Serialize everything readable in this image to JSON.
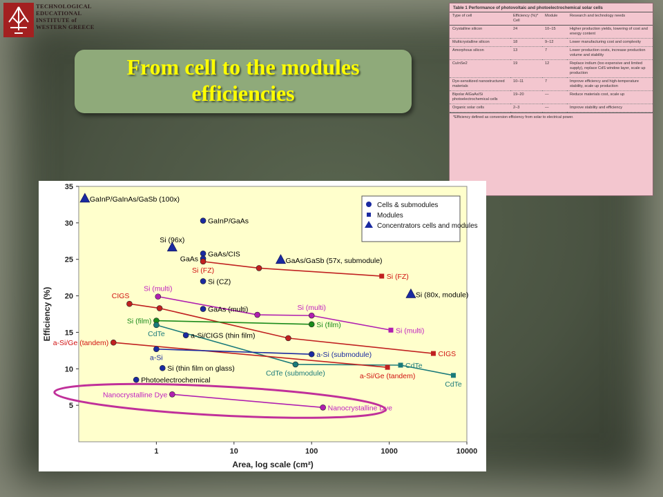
{
  "institution": {
    "lines": [
      "TECHNOLOGICAL",
      "EDUCATIONAL",
      "INSTITUTE of",
      "WESTERN GREECE"
    ]
  },
  "slide": {
    "title_line1": "From cell to the modules",
    "title_line2": "efficiencies"
  },
  "colors": {
    "title_text": "#ffff00",
    "title_box": "#8faa7a",
    "plot_bg": "#ffffcc",
    "table_bg": "#f3c6cf",
    "ellipse": "#c0309a"
  },
  "table": {
    "caption": "Table 1 Performance of photovoltaic and photoelectrochemical solar cells",
    "headers": [
      "Type of cell",
      "Efficiency (%)* Cell",
      "Module",
      "Research and technology needs"
    ],
    "rows": [
      [
        "Crystalline silicon",
        "24",
        "10–15",
        "Higher production yields, lowering of cost and energy content"
      ],
      [
        "Multicrystalline silicon",
        "18",
        "9–12",
        "Lower manufacturing cost and complexity"
      ],
      [
        "Amorphous silicon",
        "13",
        "7",
        "Lower production costs, increase production volume and stability"
      ],
      [
        "CuInSe2",
        "19",
        "12",
        "Replace indium (too expensive and limited supply), replace CdS window layer, scale up production"
      ],
      [
        "Dye-sensitized nanostructured materials",
        "10–11",
        "7",
        "Improve efficiency and high-temperature stability, scale up production"
      ],
      [
        "Bipolar AlGaAs/Si photoelectrochemical cells",
        "19–20",
        "—",
        "Reduce materials cost, scale up"
      ],
      [
        "Organic solar cells",
        "2–3",
        "—",
        "Improve stability and efficiency"
      ]
    ],
    "footnote": "*Efficiency defined as conversion efficiency from solar to electrical power."
  },
  "chart_data": {
    "type": "scatter",
    "xlabel": "Area, log scale (cm²)",
    "ylabel": "Efficiency (%)",
    "xscale": "log",
    "xlim": [
      0.1,
      10000
    ],
    "ylim": [
      0,
      35
    ],
    "x_ticks": [
      "1",
      "10",
      "100",
      "1000",
      "10000"
    ],
    "y_ticks": [
      "5",
      "10",
      "15",
      "20",
      "25",
      "30",
      "35"
    ],
    "grid": false,
    "legend": {
      "placement": "top-right",
      "entries": [
        {
          "label": "Cells & submodules",
          "marker": "circle"
        },
        {
          "label": "Modules",
          "marker": "square"
        },
        {
          "label": "Concentrators cells and modules",
          "marker": "triangle"
        }
      ]
    },
    "points": [
      {
        "label": "GaInP/GaInAs/GaSb (100x)",
        "x": 0.12,
        "y": 33.3,
        "marker": "triangle",
        "color": "#1a2aa0",
        "label_color": "#000000",
        "label_side": "right"
      },
      {
        "label": "Si (96x)",
        "x": 1.6,
        "y": 26.6,
        "marker": "triangle",
        "color": "#1a2aa0",
        "label_color": "#000000",
        "label_side": "above"
      },
      {
        "label": "GaAs/GaSb (57x, submodule)",
        "x": 40,
        "y": 24.9,
        "marker": "triangle",
        "color": "#1a2aa0",
        "label_color": "#000000",
        "label_side": "right"
      },
      {
        "label": "Si (80x, module)",
        "x": 1900,
        "y": 20.2,
        "marker": "triangle",
        "color": "#1a2aa0",
        "label_color": "#000000",
        "label_side": "right"
      },
      {
        "label": "GaInP/GaAs",
        "x": 4,
        "y": 30.3,
        "marker": "circle",
        "color": "#1a2aa0",
        "label_color": "#000000",
        "label_side": "right"
      },
      {
        "label": "GaAs/CIS",
        "x": 4,
        "y": 25.8,
        "marker": "circle",
        "color": "#1a2aa0",
        "label_color": "#000000",
        "label_side": "right"
      },
      {
        "label": "GaAs",
        "x": 4,
        "y": 25.1,
        "marker": "circle",
        "color": "#1a2aa0",
        "label_color": "#000000",
        "label_side": "left"
      },
      {
        "label": "Si (CZ)",
        "x": 4,
        "y": 22.0,
        "marker": "circle",
        "color": "#1a2aa0",
        "label_color": "#000000",
        "label_side": "right"
      },
      {
        "label": "GaAs (multi)",
        "x": 4,
        "y": 18.2,
        "marker": "circle",
        "color": "#1a2aa0",
        "label_color": "#000000",
        "label_side": "right"
      },
      {
        "label": "a-Si/CIGS (thin film)",
        "x": 2.4,
        "y": 14.6,
        "marker": "circle",
        "color": "#1a2aa0",
        "label_color": "#000000",
        "label_side": "right"
      },
      {
        "label": "Si (thin film on glass)",
        "x": 1.2,
        "y": 10.1,
        "marker": "circle",
        "color": "#1a2aa0",
        "label_color": "#000000",
        "label_side": "right"
      },
      {
        "label": "Photoelectrochemical",
        "x": 0.55,
        "y": 8.5,
        "marker": "circle",
        "color": "#1a2aa0",
        "label_color": "#000000",
        "label_side": "right"
      },
      {
        "label": "Si (multi)",
        "x": 1.05,
        "y": 19.9,
        "marker": "circle",
        "color": "#b01fb0",
        "label_color": "#c020c0",
        "label_side": "above"
      },
      {
        "label": "CIGS",
        "x": 0.45,
        "y": 18.9,
        "marker": "circle",
        "color": "#c02020",
        "label_color": "#d01010",
        "label_side": "above-left"
      },
      {
        "label": "Si (FZ)",
        "x": 4,
        "y": 24.7,
        "marker": "circle",
        "color": "#c02020",
        "label_color": "#d01010",
        "label_side": "below"
      },
      {
        "label": "Si (film)",
        "x": 1,
        "y": 16.6,
        "marker": "circle",
        "color": "#1a8a1a",
        "label_color": "#1a8a1a",
        "label_side": "left"
      },
      {
        "label": "CdTe",
        "x": 1,
        "y": 16.0,
        "marker": "circle",
        "color": "#1a7a7a",
        "label_color": "#1a7a7a",
        "label_side": "below"
      },
      {
        "label": "a-Si/Ge (tandem)",
        "x": 0.28,
        "y": 13.6,
        "marker": "circle",
        "color": "#c02020",
        "label_color": "#d01010",
        "label_side": "left"
      },
      {
        "label": "a-Si",
        "x": 1,
        "y": 12.7,
        "marker": "circle",
        "color": "#1a2aa0",
        "label_color": "#1a2aa0",
        "label_side": "below"
      },
      {
        "label": "a-Si (submodule)",
        "x": 100,
        "y": 12.0,
        "marker": "circle",
        "color": "#1a2aa0",
        "label_color": "#1a2aa0",
        "label_side": "right"
      },
      {
        "label": "CdTe (submodule)",
        "x": 62,
        "y": 10.6,
        "marker": "circle",
        "color": "#1a7a7a",
        "label_color": "#1a7a7a",
        "label_side": "below"
      },
      {
        "label": "Nanocrystalline Dye",
        "x": 1.6,
        "y": 6.5,
        "marker": "circle",
        "color": "#b01fb0",
        "label_color": "#c020c0",
        "label_side": "left"
      },
      {
        "label": "Nanocrystalline Dye",
        "x": 140,
        "y": 4.7,
        "marker": "circle",
        "color": "#b01fb0",
        "label_color": "#c020c0",
        "label_side": "right"
      },
      {
        "label": "",
        "x": 21,
        "y": 23.8,
        "marker": "circle",
        "color": "#c02020"
      },
      {
        "label": "",
        "x": 1.1,
        "y": 18.3,
        "marker": "circle",
        "color": "#c02020"
      },
      {
        "label": "",
        "x": 50,
        "y": 14.2,
        "marker": "circle",
        "color": "#c02020"
      },
      {
        "label": "",
        "x": 20,
        "y": 17.4,
        "marker": "circle",
        "color": "#b01fb0"
      },
      {
        "label": "Si (multi)",
        "x": 100,
        "y": 17.3,
        "marker": "circle",
        "color": "#b01fb0",
        "label_color": "#c020c0",
        "label_side": "above"
      },
      {
        "label": "Si (film)",
        "x": 100,
        "y": 16.1,
        "marker": "circle",
        "color": "#1a8a1a",
        "label_color": "#1a8a1a",
        "label_side": "right"
      },
      {
        "label": "Si (FZ)",
        "x": 800,
        "y": 22.7,
        "marker": "square",
        "color": "#c02020",
        "label_color": "#d01010",
        "label_side": "right"
      },
      {
        "label": "Si (multi)",
        "x": 1050,
        "y": 15.3,
        "marker": "square",
        "color": "#b01fb0",
        "label_color": "#c020c0",
        "label_side": "right"
      },
      {
        "label": "CIGS",
        "x": 3700,
        "y": 12.1,
        "marker": "square",
        "color": "#c02020",
        "label_color": "#d01010",
        "label_side": "right"
      },
      {
        "label": "CdTe",
        "x": 1400,
        "y": 10.5,
        "marker": "square",
        "color": "#1a7a7a",
        "label_color": "#1a7a7a",
        "label_side": "right"
      },
      {
        "label": "a-Si/Ge (tandem)",
        "x": 950,
        "y": 10.2,
        "marker": "square",
        "color": "#c02020",
        "label_color": "#d01010",
        "label_side": "below"
      },
      {
        "label": "CdTe",
        "x": 6700,
        "y": 9.1,
        "marker": "square",
        "color": "#1a7a7a",
        "label_color": "#1a7a7a",
        "label_side": "below"
      }
    ],
    "lines": [
      {
        "color": "#c02020",
        "x": [
          4,
          21,
          800
        ],
        "y": [
          24.7,
          23.8,
          22.7
        ]
      },
      {
        "color": "#c02020",
        "x": [
          0.45,
          1.1,
          50,
          3700
        ],
        "y": [
          18.9,
          18.3,
          14.2,
          12.1
        ]
      },
      {
        "color": "#b01fb0",
        "x": [
          1.05,
          20,
          100,
          1050
        ],
        "y": [
          19.9,
          17.4,
          17.3,
          15.3
        ]
      },
      {
        "color": "#1a8a1a",
        "x": [
          1,
          100
        ],
        "y": [
          16.6,
          16.1
        ]
      },
      {
        "color": "#1a7a7a",
        "x": [
          1,
          62,
          1400,
          6700
        ],
        "y": [
          16.0,
          10.6,
          10.5,
          9.1
        ]
      },
      {
        "color": "#c02020",
        "x": [
          0.28,
          950
        ],
        "y": [
          13.6,
          10.2
        ]
      },
      {
        "color": "#1a2aa0",
        "x": [
          1,
          100
        ],
        "y": [
          12.7,
          12.0
        ]
      },
      {
        "color": "#b01fb0",
        "x": [
          1.6,
          140
        ],
        "y": [
          6.5,
          4.7
        ]
      }
    ]
  }
}
